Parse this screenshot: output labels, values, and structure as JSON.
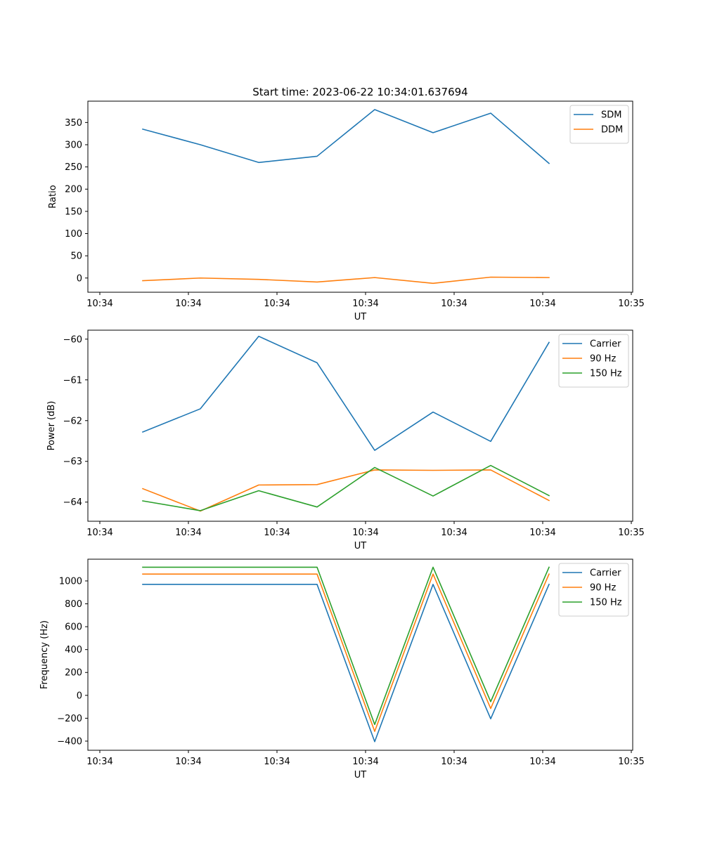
{
  "chart_data": [
    {
      "type": "line",
      "title": "Start time: 2023-06-22 10:34:01.637694",
      "xlabel": "UT",
      "ylabel": "Ratio",
      "x_tick_labels": [
        "10:34",
        "10:34",
        "10:34",
        "10:34",
        "10:34",
        "10:34",
        "10:35"
      ],
      "y_ticks": [
        0,
        50,
        100,
        150,
        200,
        250,
        300,
        350
      ],
      "ylim": [
        -32,
        398
      ],
      "grid": false,
      "legend_position": "upper right",
      "series": [
        {
          "name": "SDM",
          "color": "#1f77b4",
          "values": [
            335,
            300,
            260,
            274,
            379,
            327,
            371,
            258
          ]
        },
        {
          "name": "DDM",
          "color": "#ff7f0e",
          "values": [
            -6,
            0,
            -3,
            -9,
            1,
            -12,
            2,
            1
          ]
        }
      ]
    },
    {
      "type": "line",
      "title": "",
      "xlabel": "UT",
      "ylabel": "Power (dB)",
      "x_tick_labels": [
        "10:34",
        "10:34",
        "10:34",
        "10:34",
        "10:34",
        "10:34",
        "10:35"
      ],
      "y_ticks": [
        -64,
        -63,
        -62,
        -61,
        -60
      ],
      "ylim": [
        -64.47,
        -59.78
      ],
      "grid": false,
      "legend_position": "upper right",
      "series": [
        {
          "name": "Carrier",
          "color": "#1f77b4",
          "values": [
            -62.28,
            -61.71,
            -59.93,
            -60.58,
            -62.73,
            -61.79,
            -62.51,
            -60.08
          ]
        },
        {
          "name": "90 Hz",
          "color": "#ff7f0e",
          "values": [
            -63.67,
            -64.22,
            -63.58,
            -63.57,
            -63.21,
            -63.22,
            -63.21,
            -63.96
          ]
        },
        {
          "name": "150 Hz",
          "color": "#2ca02c",
          "values": [
            -63.97,
            -64.21,
            -63.72,
            -64.12,
            -63.15,
            -63.85,
            -63.1,
            -63.84
          ]
        }
      ]
    },
    {
      "type": "line",
      "title": "",
      "xlabel": "UT",
      "ylabel": "Frequency (Hz)",
      "x_tick_labels": [
        "10:34",
        "10:34",
        "10:34",
        "10:34",
        "10:34",
        "10:34",
        "10:35"
      ],
      "y_ticks": [
        -400,
        -200,
        0,
        200,
        400,
        600,
        800,
        1000
      ],
      "ylim": [
        -480,
        1190
      ],
      "grid": false,
      "legend_position": "upper right",
      "series": [
        {
          "name": "Carrier",
          "color": "#1f77b4",
          "values": [
            970,
            970,
            970,
            970,
            -405,
            970,
            -205,
            970
          ]
        },
        {
          "name": "90 Hz",
          "color": "#ff7f0e",
          "values": [
            1060,
            1060,
            1060,
            1060,
            -315,
            1060,
            -115,
            1060
          ]
        },
        {
          "name": "150 Hz",
          "color": "#2ca02c",
          "values": [
            1120,
            1120,
            1120,
            1120,
            -255,
            1120,
            -55,
            1120
          ]
        }
      ]
    }
  ]
}
